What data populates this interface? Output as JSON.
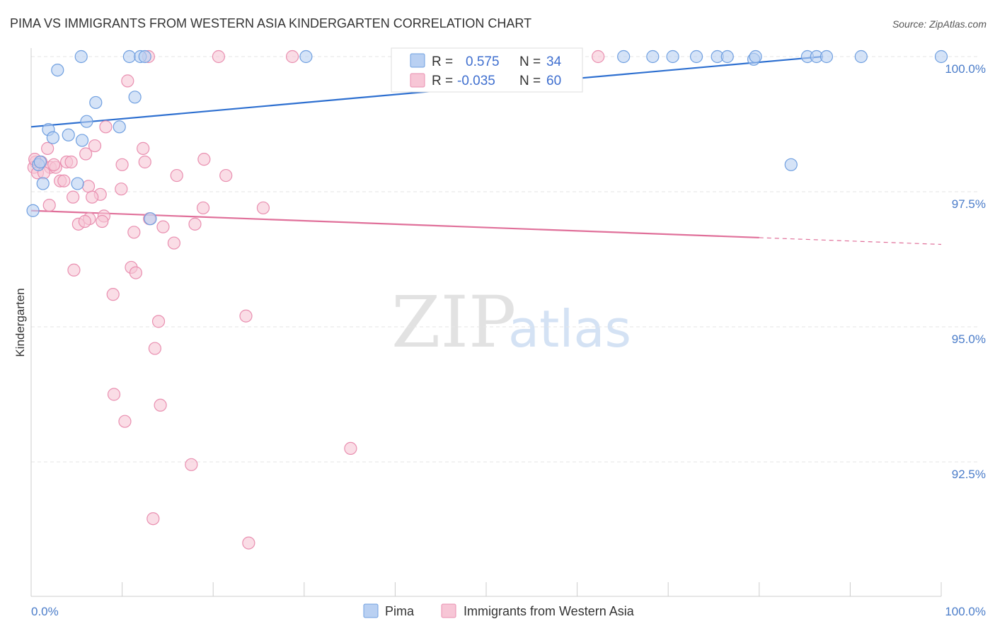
{
  "chart_data": {
    "type": "scatter",
    "title": "PIMA VS IMMIGRANTS FROM WESTERN ASIA KINDERGARTEN CORRELATION CHART",
    "source": "Source: ZipAtlas.com",
    "ylabel": "Kindergarten",
    "xlabel": "",
    "xlim": [
      0,
      100
    ],
    "ylim": [
      90.0,
      100.5
    ],
    "x_tick_labels": [
      "0.0%",
      "100.0%"
    ],
    "y_ticks": [
      {
        "value": 100.0,
        "label": "100.0%"
      },
      {
        "value": 97.5,
        "label": "97.5%"
      },
      {
        "value": 95.0,
        "label": "95.0%"
      },
      {
        "value": 92.5,
        "label": "92.5%"
      }
    ],
    "watermark": {
      "part1": "ZIP",
      "part2": "atlas"
    },
    "legend": [
      {
        "r_label": "R =",
        "r_value": "0.575",
        "n_label": "N =",
        "n_value": "34"
      },
      {
        "r_label": "R =",
        "r_value": "-0.035",
        "n_label": "N =",
        "n_value": "60"
      }
    ],
    "series": [
      {
        "name": "Pima",
        "color": "#6f9fe0",
        "fill": "#b9d0f2",
        "line_color": "#2d6fd0",
        "trend": {
          "x0": 0,
          "y0": 98.7,
          "x1": 87,
          "y1": 100.0,
          "dash_to": 87
        },
        "points": [
          [
            5.5,
            100.0
          ],
          [
            10.8,
            100.0
          ],
          [
            12.0,
            100.0
          ],
          [
            12.5,
            100.0
          ],
          [
            30.2,
            100.0
          ],
          [
            65.1,
            100.0
          ],
          [
            68.3,
            100.0
          ],
          [
            70.5,
            100.0
          ],
          [
            73.1,
            100.0
          ],
          [
            75.4,
            100.0
          ],
          [
            76.5,
            100.0
          ],
          [
            79.4,
            99.95
          ],
          [
            79.6,
            100.0
          ],
          [
            85.3,
            100.0
          ],
          [
            86.3,
            100.0
          ],
          [
            87.4,
            100.0
          ],
          [
            91.2,
            100.0
          ],
          [
            100.0,
            100.0
          ],
          [
            2.9,
            99.75
          ],
          [
            11.4,
            99.25
          ],
          [
            7.1,
            99.15
          ],
          [
            6.1,
            98.8
          ],
          [
            1.9,
            98.65
          ],
          [
            2.4,
            98.5
          ],
          [
            4.1,
            98.55
          ],
          [
            5.6,
            98.45
          ],
          [
            0.8,
            98.0
          ],
          [
            1.3,
            97.65
          ],
          [
            5.1,
            97.65
          ],
          [
            0.2,
            97.15
          ],
          [
            13.1,
            97.0
          ],
          [
            83.5,
            98.0
          ],
          [
            9.7,
            98.7
          ],
          [
            1.0,
            98.05
          ]
        ]
      },
      {
        "name": "Immigrants from Western Asia",
        "color": "#e98fb0",
        "fill": "#f7c6d6",
        "line_color": "#e0709a",
        "trend": {
          "x0": 0,
          "y0": 97.15,
          "x1": 80,
          "y1": 96.65,
          "dash_to": 100
        },
        "points": [
          [
            12.9,
            100.0
          ],
          [
            20.6,
            100.0
          ],
          [
            28.7,
            100.0
          ],
          [
            62.3,
            100.0
          ],
          [
            10.6,
            99.55
          ],
          [
            8.2,
            98.7
          ],
          [
            7.0,
            98.35
          ],
          [
            12.3,
            98.3
          ],
          [
            1.8,
            98.3
          ],
          [
            6.0,
            98.2
          ],
          [
            0.5,
            98.05
          ],
          [
            1.1,
            98.05
          ],
          [
            3.9,
            98.05
          ],
          [
            4.4,
            98.05
          ],
          [
            12.5,
            98.05
          ],
          [
            19.0,
            98.1
          ],
          [
            0.3,
            97.95
          ],
          [
            2.1,
            97.95
          ],
          [
            2.7,
            97.95
          ],
          [
            10.0,
            98.0
          ],
          [
            0.7,
            97.85
          ],
          [
            1.4,
            97.85
          ],
          [
            16.0,
            97.8
          ],
          [
            21.4,
            97.8
          ],
          [
            3.2,
            97.7
          ],
          [
            3.6,
            97.7
          ],
          [
            6.3,
            97.6
          ],
          [
            7.6,
            97.45
          ],
          [
            4.6,
            97.4
          ],
          [
            6.7,
            97.4
          ],
          [
            2.0,
            97.25
          ],
          [
            18.9,
            97.2
          ],
          [
            25.5,
            97.2
          ],
          [
            8.0,
            97.05
          ],
          [
            6.4,
            97.0
          ],
          [
            7.8,
            96.95
          ],
          [
            5.2,
            96.9
          ],
          [
            18.0,
            96.9
          ],
          [
            14.5,
            96.85
          ],
          [
            11.3,
            96.75
          ],
          [
            15.7,
            96.55
          ],
          [
            11.0,
            96.1
          ],
          [
            4.7,
            96.05
          ],
          [
            11.5,
            96.0
          ],
          [
            9.0,
            95.6
          ],
          [
            23.6,
            95.2
          ],
          [
            14.0,
            95.1
          ],
          [
            13.6,
            94.6
          ],
          [
            9.1,
            93.75
          ],
          [
            14.2,
            93.55
          ],
          [
            10.3,
            93.25
          ],
          [
            35.1,
            92.75
          ],
          [
            17.6,
            92.45
          ],
          [
            13.4,
            91.45
          ],
          [
            23.9,
            91.0
          ],
          [
            0.4,
            98.1
          ],
          [
            2.5,
            98.0
          ],
          [
            13.0,
            97.0
          ],
          [
            5.9,
            96.95
          ],
          [
            9.9,
            97.55
          ]
        ]
      }
    ]
  }
}
